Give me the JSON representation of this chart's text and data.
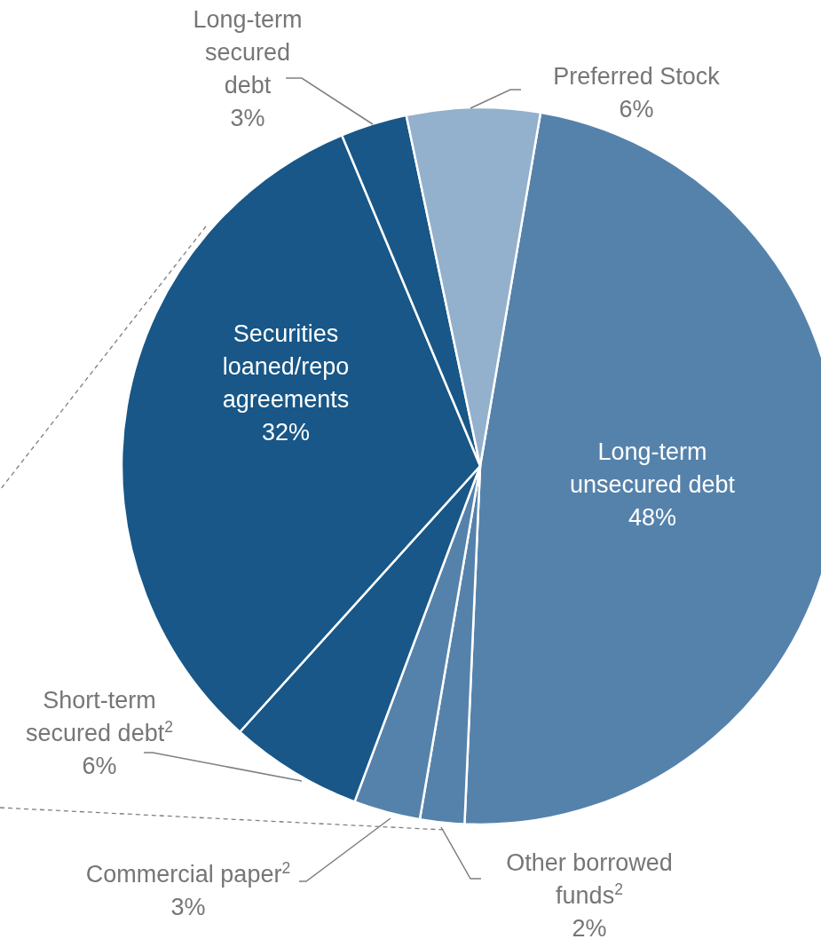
{
  "chart_data": {
    "type": "pie",
    "categories": [
      "Long-term unsecured debt",
      "Other borrowed funds$^{2}$",
      "Commercial paper$^{2}$",
      "Short-term secured debt$^{2}$",
      "Securities loaned/repo agreements",
      "Long-term secured debt",
      "Preferred Stock"
    ],
    "values": [
      48,
      2,
      3,
      6,
      32,
      3,
      6
    ],
    "value_labels": [
      "48%",
      "2%",
      "3%",
      "6%",
      "32%",
      "3%",
      "6%"
    ],
    "colors": [
      "#5582ab",
      "#5582ab",
      "#5582ab",
      "#185787",
      "#185787",
      "#185787",
      "#93b0cc"
    ]
  }
}
